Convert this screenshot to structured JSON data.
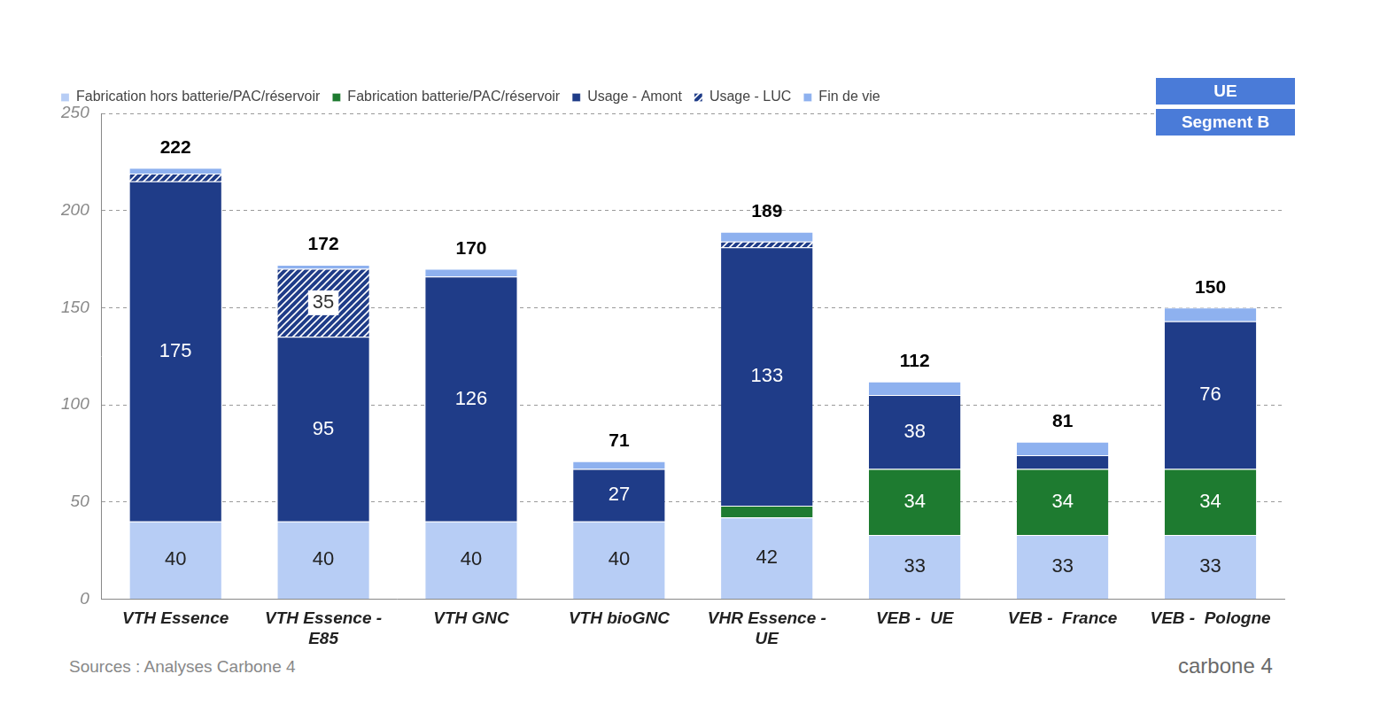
{
  "chart_data": {
    "type": "bar",
    "stacked": true,
    "categories": [
      "VTH Essence",
      [
        "VTH Essence -",
        "E85"
      ],
      "VTH GNC",
      "VTH bioGNC",
      [
        "VHR Essence -",
        "UE"
      ],
      "VEB -  UE",
      "VEB -  France",
      "VEB -  Pologne"
    ],
    "series": [
      {
        "name": "Fabrication hors batterie/PAC/réservoir",
        "color": "#b7cdf5",
        "values": [
          40,
          40,
          40,
          40,
          42,
          33,
          33,
          33
        ],
        "value_labels": [
          "40",
          "40",
          "40",
          "40",
          "42",
          "33",
          "33",
          "33"
        ]
      },
      {
        "name": "Fabrication batterie/PAC/réservoir",
        "color": "#1e7b30",
        "values": [
          0,
          0,
          0,
          0,
          6,
          34,
          34,
          34
        ],
        "value_labels": [
          null,
          null,
          null,
          null,
          null,
          "34",
          "34",
          "34"
        ]
      },
      {
        "name": "Usage - Amont",
        "color": "#1f3c88",
        "values": [
          175,
          95,
          126,
          27,
          133,
          38,
          7,
          76
        ],
        "value_labels": [
          "175",
          "95",
          "126",
          "27",
          "133",
          "38",
          null,
          "76"
        ]
      },
      {
        "name": "Usage - LUC",
        "color": "#1f3c88",
        "line_style": "hatched",
        "values": [
          4,
          35,
          0,
          0,
          3,
          0,
          0,
          0
        ],
        "value_labels": [
          null,
          "35",
          null,
          null,
          null,
          null,
          null,
          null
        ]
      },
      {
        "name": "Fin de vie",
        "color": "#8eb1ef",
        "values": [
          3,
          2,
          4,
          4,
          5,
          7,
          7,
          7
        ]
      }
    ],
    "totals": [
      222,
      172,
      170,
      71,
      189,
      112,
      81,
      150
    ],
    "ylim": [
      0,
      250
    ],
    "yticks": [
      0,
      50,
      100,
      150,
      200,
      250
    ],
    "grid": true,
    "legend": "top-left",
    "data_labels": true,
    "badges": [
      "UE",
      "Segment B"
    ],
    "source": "Sources : Analyses Carbone 4",
    "logo": "carbone 4"
  }
}
